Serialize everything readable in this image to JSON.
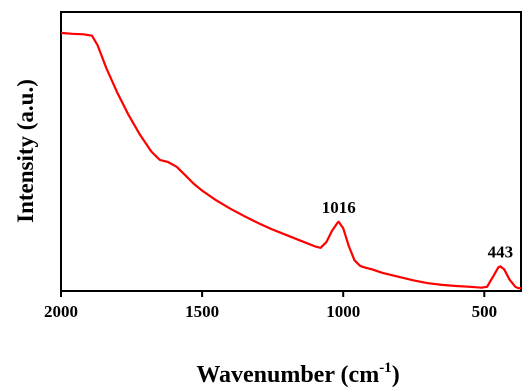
{
  "chart_data": {
    "type": "line",
    "xlabel": "Wavenumber (cm",
    "xlabel_sup": "-1",
    "xlabel_close": ")",
    "ylabel": "Intensity (a.u.)",
    "xlim": [
      2000,
      370
    ],
    "x_reversed": true,
    "ylim": [
      0,
      1
    ],
    "y_ticks_shown": false,
    "x_ticks": [
      2000,
      1500,
      1000,
      500
    ],
    "x_tick_labels": [
      "2000",
      "1500",
      "1000",
      "500"
    ],
    "grid": false,
    "line_color": "#ff0000",
    "series": [
      {
        "x": [
          2000,
          1960,
          1920,
          1890,
          1870,
          1840,
          1800,
          1760,
          1720,
          1680,
          1650,
          1620,
          1590,
          1560,
          1530,
          1500,
          1450,
          1400,
          1350,
          1300,
          1250,
          1200,
          1150,
          1100,
          1080,
          1060,
          1040,
          1020,
          1016,
          1000,
          980,
          960,
          940,
          920,
          900,
          860,
          800,
          750,
          700,
          650,
          600,
          550,
          510,
          490,
          470,
          450,
          443,
          430,
          410,
          390,
          380,
          370
        ],
        "y": [
          0.925,
          0.922,
          0.92,
          0.915,
          0.88,
          0.8,
          0.71,
          0.63,
          0.56,
          0.5,
          0.47,
          0.462,
          0.445,
          0.415,
          0.385,
          0.36,
          0.325,
          0.295,
          0.268,
          0.243,
          0.22,
          0.2,
          0.18,
          0.16,
          0.155,
          0.175,
          0.215,
          0.245,
          0.248,
          0.225,
          0.16,
          0.11,
          0.09,
          0.083,
          0.078,
          0.065,
          0.05,
          0.038,
          0.028,
          0.022,
          0.018,
          0.015,
          0.012,
          0.015,
          0.05,
          0.085,
          0.088,
          0.078,
          0.04,
          0.015,
          0.01,
          0.01
        ]
      }
    ],
    "annotations": [
      {
        "text": "1016",
        "x": 1016,
        "y": 0.248
      },
      {
        "text": "443",
        "x": 443,
        "y": 0.088
      }
    ]
  }
}
